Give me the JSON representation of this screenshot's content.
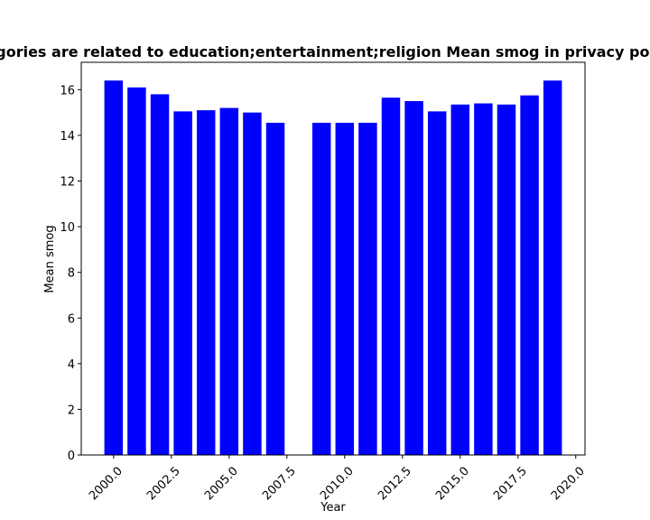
{
  "chart_data": {
    "type": "bar",
    "title": "Categories are related to education;entertainment;religion Mean smog in privacy policies",
    "xlabel": "Year",
    "ylabel": "Mean smog",
    "x": [
      2000,
      2001,
      2002,
      2003,
      2004,
      2005,
      2006,
      2007,
      2009,
      2010,
      2011,
      2012,
      2013,
      2014,
      2015,
      2016,
      2017,
      2018,
      2019
    ],
    "values": [
      16.4,
      16.1,
      15.8,
      15.05,
      15.1,
      15.2,
      15.0,
      14.55,
      14.55,
      14.55,
      14.55,
      15.65,
      15.5,
      15.05,
      15.35,
      15.4,
      15.35,
      15.75,
      16.4
    ],
    "xlim": [
      1998.6,
      2020.4
    ],
    "ylim": [
      0,
      17.2
    ],
    "xticks": [
      "2000.0",
      "2002.5",
      "2005.0",
      "2007.5",
      "2010.0",
      "2012.5",
      "2015.0",
      "2017.5",
      "2020.0"
    ],
    "xtick_values": [
      2000,
      2002.5,
      2005,
      2007.5,
      2010,
      2012.5,
      2015,
      2017.5,
      2020
    ],
    "yticks": [
      "0",
      "2",
      "4",
      "6",
      "8",
      "10",
      "12",
      "14",
      "16"
    ],
    "ytick_values": [
      0,
      2,
      4,
      6,
      8,
      10,
      12,
      14,
      16
    ],
    "bar_color": "#0000ff",
    "grid": false,
    "legend": "none"
  }
}
